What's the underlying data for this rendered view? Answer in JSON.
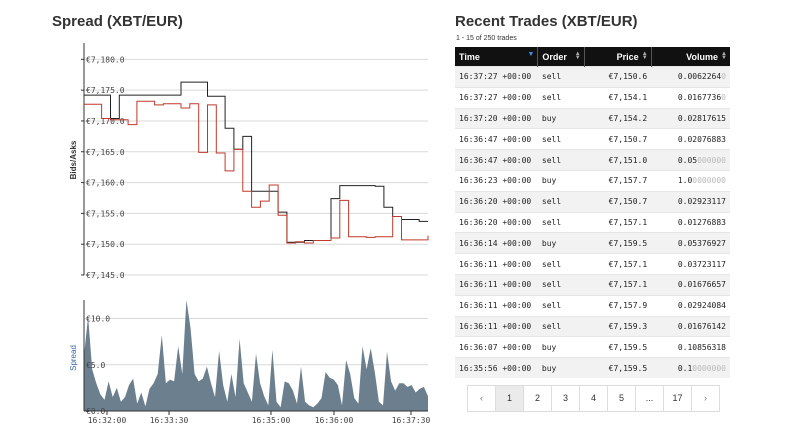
{
  "spread": {
    "title": "Spread (XBT/EUR)",
    "ylabel": "Bids/Asks",
    "yticks": [
      "€7,180.0",
      "€7,175.0",
      "€7,170.0",
      "€7,165.0",
      "€7,160.0",
      "€7,155.0",
      "€7,150.0",
      "€7,145.0"
    ],
    "ask_color": "#222222",
    "bid_color": "#c0392b"
  },
  "volume_chart": {
    "ylabel": "Spread",
    "yticks": [
      "€10.0",
      "€5.0",
      "€0.0"
    ],
    "xticks": [
      "16:32:00",
      "16:33:30",
      "16:35:00",
      "16:36:00",
      "16:37:30"
    ],
    "fill_color": "#6b7f8e"
  },
  "chart_data": [
    {
      "type": "line",
      "title": "Spread (XBT/EUR)",
      "ylabel": "Bids/Asks",
      "ylim": [
        7145,
        7182
      ],
      "x_range": [
        "16:31:30",
        "16:37:50"
      ],
      "series": [
        {
          "values": [
            7174.2,
            7174.2,
            7174.2,
            7170.4,
            7174.2,
            7174.2,
            7174.2,
            7174.2,
            7174.2,
            7174.2,
            7174.2,
            7176.3,
            7176.3,
            7176.3,
            7174.0,
            7174.0,
            7168.8,
            7165.4,
            7167.5,
            7158.6,
            7158.6,
            7158.6,
            7155.2,
            7150.3,
            7150.3,
            7150.6,
            7150.6,
            7150.6,
            7157.4,
            7159.5,
            7159.5,
            7159.5,
            7159.5,
            7159.4,
            7156.0,
            7154.5,
            7154.0,
            7154.0,
            7153.7,
            7153.7
          ]
        },
        {
          "values": [
            7172.7,
            7172.7,
            7170.4,
            7170.2,
            7170.2,
            7169.4,
            7173.2,
            7173.2,
            7172.6,
            7172.8,
            7172.8,
            7172.1,
            7172.8,
            7164.9,
            7172.6,
            7164.8,
            7161.9,
            7165.4,
            7158.6,
            7156.0,
            7157.0,
            7159.6,
            7154.7,
            7150.2,
            7150.4,
            7150.2,
            7150.6,
            7150.6,
            7151.0,
            7157.1,
            7151.2,
            7151.2,
            7151.1,
            7151.2,
            7151.2,
            7154.5,
            7150.7,
            7150.7,
            7150.7,
            7151.4
          ]
        }
      ]
    },
    {
      "type": "area",
      "ylabel": "Spread",
      "ylim": [
        0,
        12
      ],
      "xticks": [
        "16:32:00",
        "16:33:30",
        "16:35:00",
        "16:36:00",
        "16:37:30"
      ],
      "series": [
        {
          "values": [
            6.0,
            10.2,
            4.5,
            3.0,
            1.8,
            1.2,
            3.2,
            1.5,
            2.5,
            1.0,
            1.5,
            2.8,
            3.5,
            0.8,
            2.0,
            0.5,
            2.4,
            3.0,
            4.0,
            8.2,
            3.0,
            3.4,
            3.2,
            7.0,
            4.0,
            12.0,
            9.0,
            4.0,
            3.2,
            3.5,
            4.8,
            3.0,
            1.5,
            6.5,
            2.8,
            1.0,
            4.0,
            1.5,
            7.8,
            3.0,
            2.0,
            1.0,
            6.2,
            3.0,
            1.6,
            0.6,
            6.6,
            1.0,
            0.4,
            3.2,
            3.0,
            2.2,
            0.8,
            4.8,
            1.0,
            0.6,
            0.4,
            0.8,
            1.4,
            4.2,
            3.6,
            3.4,
            2.8,
            0.6,
            5.5,
            4.0,
            1.4,
            0.8,
            7.0,
            4.5,
            6.8,
            4.2,
            1.0,
            0.6,
            6.4,
            3.2,
            2.2,
            3.0,
            3.0,
            2.6,
            2.8,
            2.0,
            2.4,
            2.6,
            1.6
          ]
        }
      ]
    }
  ],
  "trades": {
    "title": "Recent Trades (XBT/EUR)",
    "count_text": "1 - 15 of 250 trades",
    "columns": [
      "Time",
      "Order",
      "Price",
      "Volume"
    ],
    "rows": [
      {
        "time": "16:37:27 +00:00",
        "order": "sell",
        "price": "€7,150.6",
        "vol_main": "0.0062264",
        "vol_tail": "0"
      },
      {
        "time": "16:37:27 +00:00",
        "order": "sell",
        "price": "€7,154.1",
        "vol_main": "0.0167736",
        "vol_tail": "0"
      },
      {
        "time": "16:37:20 +00:00",
        "order": "buy",
        "price": "€7,154.2",
        "vol_main": "0.02817615",
        "vol_tail": ""
      },
      {
        "time": "16:36:47 +00:00",
        "order": "sell",
        "price": "€7,150.7",
        "vol_main": "0.02076883",
        "vol_tail": ""
      },
      {
        "time": "16:36:47 +00:00",
        "order": "sell",
        "price": "€7,151.0",
        "vol_main": "0.05",
        "vol_tail": "000000"
      },
      {
        "time": "16:36:23 +00:00",
        "order": "buy",
        "price": "€7,157.7",
        "vol_main": "1.0",
        "vol_tail": "0000000"
      },
      {
        "time": "16:36:20 +00:00",
        "order": "sell",
        "price": "€7,150.7",
        "vol_main": "0.02923117",
        "vol_tail": ""
      },
      {
        "time": "16:36:20 +00:00",
        "order": "sell",
        "price": "€7,157.1",
        "vol_main": "0.01276883",
        "vol_tail": ""
      },
      {
        "time": "16:36:14 +00:00",
        "order": "buy",
        "price": "€7,159.5",
        "vol_main": "0.05376927",
        "vol_tail": ""
      },
      {
        "time": "16:36:11 +00:00",
        "order": "sell",
        "price": "€7,157.1",
        "vol_main": "0.03723117",
        "vol_tail": ""
      },
      {
        "time": "16:36:11 +00:00",
        "order": "sell",
        "price": "€7,157.1",
        "vol_main": "0.01676657",
        "vol_tail": ""
      },
      {
        "time": "16:36:11 +00:00",
        "order": "sell",
        "price": "€7,157.9",
        "vol_main": "0.02924084",
        "vol_tail": ""
      },
      {
        "time": "16:36:11 +00:00",
        "order": "sell",
        "price": "€7,159.3",
        "vol_main": "0.01676142",
        "vol_tail": ""
      },
      {
        "time": "16:36:07 +00:00",
        "order": "buy",
        "price": "€7,159.5",
        "vol_main": "0.10856318",
        "vol_tail": ""
      },
      {
        "time": "16:35:56 +00:00",
        "order": "buy",
        "price": "€7,159.5",
        "vol_main": "0.1",
        "vol_tail": "0000000"
      }
    ],
    "sell_color": "#c0392b",
    "buy_color": "#27ae60"
  },
  "pagination": {
    "prev": "‹",
    "pages": [
      "1",
      "2",
      "3",
      "4",
      "5",
      "...",
      "17"
    ],
    "next": "›",
    "current": "1"
  }
}
